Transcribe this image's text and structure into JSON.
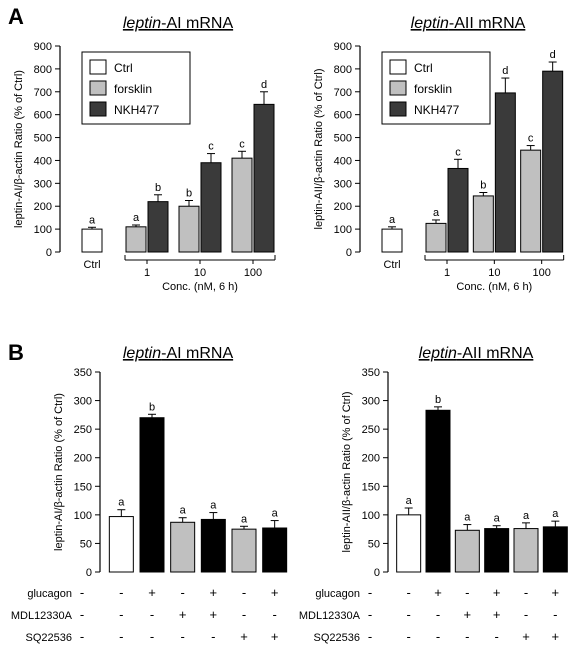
{
  "panels": {
    "A": {
      "letter": "A",
      "legend": [
        {
          "name": "Ctrl",
          "color": "#ffffff"
        },
        {
          "name": "forsklin",
          "color": "#c0c0c0"
        },
        {
          "name": "NKH477",
          "color": "#3a3a3a"
        }
      ],
      "xlabel": "Conc. (nM, 6 h)",
      "ctrl_label": "Ctrl",
      "conc_labels": [
        "1",
        "10",
        "100"
      ]
    },
    "B": {
      "letter": "B",
      "conditions": {
        "rows": [
          "glucagon",
          "MDL12330A",
          "SQ22536"
        ],
        "signs": [
          [
            "-",
            "+",
            "-",
            "+",
            "-",
            "+"
          ],
          [
            "-",
            "-",
            "+",
            "+",
            "-",
            "-"
          ],
          [
            "-",
            "-",
            "-",
            "-",
            "+",
            "+"
          ]
        ]
      }
    }
  },
  "chart_data": [
    {
      "type": "bar",
      "panel": "A",
      "title_italic": "leptin",
      "title_rest": "-AI mRNA",
      "ylabel": "leptin-AI/β-actin Ratio (% of Ctrl)",
      "xlabel": "Conc. (nM, 6 h)",
      "ylim": [
        0,
        900
      ],
      "yticks": [
        0,
        100,
        200,
        300,
        400,
        500,
        600,
        700,
        800,
        900
      ],
      "categories": [
        "Ctrl",
        "1",
        "10",
        "100"
      ],
      "series": [
        {
          "name": "Ctrl",
          "color": "#ffffff",
          "values": [
            100,
            null,
            null,
            null
          ],
          "errors": [
            8,
            null,
            null,
            null
          ],
          "labels": [
            "a",
            null,
            null,
            null
          ]
        },
        {
          "name": "forsklin",
          "color": "#c0c0c0",
          "values": [
            null,
            110,
            200,
            410
          ],
          "errors": [
            null,
            8,
            25,
            30
          ],
          "labels": [
            null,
            "a",
            "b",
            "c"
          ]
        },
        {
          "name": "NKH477",
          "color": "#3a3a3a",
          "values": [
            null,
            220,
            390,
            645
          ],
          "errors": [
            null,
            30,
            40,
            55
          ],
          "labels": [
            null,
            "b",
            "c",
            "d"
          ]
        }
      ]
    },
    {
      "type": "bar",
      "panel": "A",
      "title_italic": "leptin",
      "title_rest": "-AII mRNA",
      "ylabel": "leptin-AII/β-actin Ratio (% of Ctrl)",
      "xlabel": "Conc. (nM, 6 h)",
      "ylim": [
        0,
        900
      ],
      "yticks": [
        0,
        100,
        200,
        300,
        400,
        500,
        600,
        700,
        800,
        900
      ],
      "categories": [
        "Ctrl",
        "1",
        "10",
        "100"
      ],
      "series": [
        {
          "name": "Ctrl",
          "color": "#ffffff",
          "values": [
            100,
            null,
            null,
            null
          ],
          "errors": [
            10,
            null,
            null,
            null
          ],
          "labels": [
            "a",
            null,
            null,
            null
          ]
        },
        {
          "name": "forsklin",
          "color": "#c0c0c0",
          "values": [
            null,
            125,
            245,
            445
          ],
          "errors": [
            null,
            15,
            15,
            20
          ],
          "labels": [
            null,
            "a",
            "b",
            "c"
          ]
        },
        {
          "name": "NKH477",
          "color": "#3a3a3a",
          "values": [
            null,
            365,
            695,
            790
          ],
          "errors": [
            null,
            40,
            65,
            40
          ],
          "labels": [
            null,
            "c",
            "d",
            "d"
          ]
        }
      ]
    },
    {
      "type": "bar",
      "panel": "B",
      "title_italic": "leptin",
      "title_rest": "-AI mRNA",
      "ylabel": "leptin-AI/β-actin Ratio (% of Ctrl)",
      "ylim": [
        0,
        350
      ],
      "yticks": [
        0,
        50,
        100,
        150,
        200,
        250,
        300,
        350
      ],
      "values": [
        97,
        270,
        87,
        92,
        75,
        77
      ],
      "errors": [
        12,
        6,
        8,
        12,
        5,
        13
      ],
      "labels": [
        "a",
        "b",
        "a",
        "a",
        "a",
        "a"
      ],
      "colors": [
        "#ffffff",
        "#000000",
        "#c0c0c0",
        "#000000",
        "#c0c0c0",
        "#000000"
      ]
    },
    {
      "type": "bar",
      "panel": "B",
      "title_italic": "leptin",
      "title_rest": "-AII mRNA",
      "ylabel": "leptin-AII/β-actin Ratio (% of Ctrl)",
      "ylim": [
        0,
        350
      ],
      "yticks": [
        0,
        50,
        100,
        150,
        200,
        250,
        300,
        350
      ],
      "values": [
        100,
        283,
        73,
        76,
        76,
        79
      ],
      "errors": [
        12,
        6,
        10,
        5,
        10,
        10
      ],
      "labels": [
        "a",
        "b",
        "a",
        "a",
        "a",
        "a"
      ],
      "colors": [
        "#ffffff",
        "#000000",
        "#c0c0c0",
        "#000000",
        "#c0c0c0",
        "#000000"
      ]
    }
  ]
}
